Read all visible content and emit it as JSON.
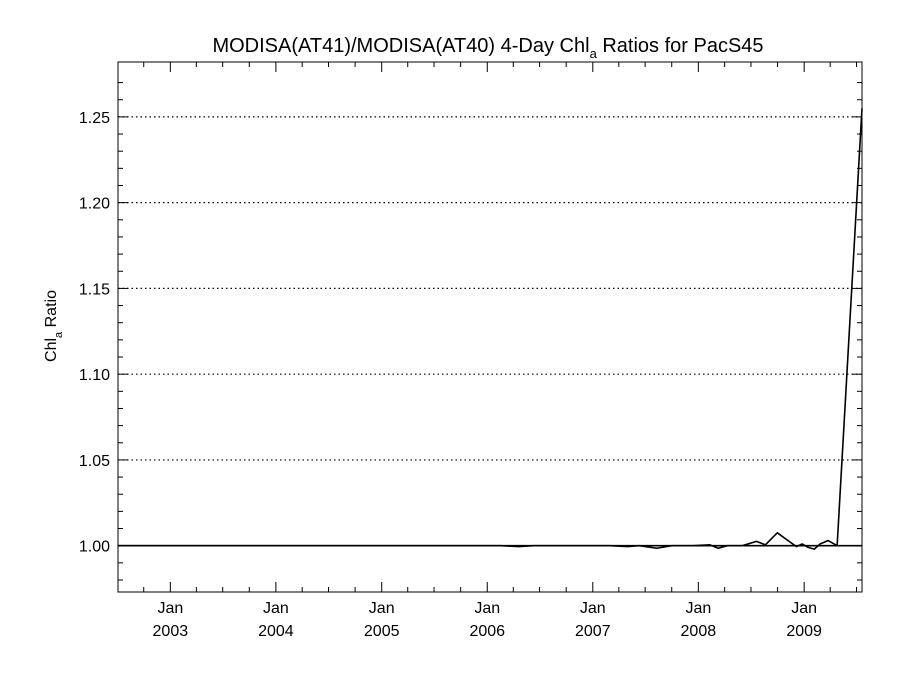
{
  "chart_data": {
    "type": "line",
    "title_main": "MODISA(AT41)/MODISA(AT40) 4-Day Chl",
    "title_sub": "a",
    "title_rest": " Ratios for PacS45",
    "ylabel_main": "Chl",
    "ylabel_sub": "a",
    "ylabel_rest": " Ratio",
    "xlim": [
      "2002-07-04",
      "2009-07-20"
    ],
    "ylim": [
      0.973,
      1.282
    ],
    "y_ticks": [
      1.0,
      1.05,
      1.1,
      1.15,
      1.2,
      1.25
    ],
    "y_tick_labels": [
      "1.00",
      "1.05",
      "1.10",
      "1.15",
      "1.20",
      "1.25"
    ],
    "y_gridlines": "dotted",
    "x_ticks": [
      {
        "date": "2003-01-01",
        "month": "Jan",
        "year": "2003"
      },
      {
        "date": "2004-01-01",
        "month": "Jan",
        "year": "2004"
      },
      {
        "date": "2005-01-01",
        "month": "Jan",
        "year": "2005"
      },
      {
        "date": "2006-01-01",
        "month": "Jan",
        "year": "2006"
      },
      {
        "date": "2007-01-01",
        "month": "Jan",
        "year": "2007"
      },
      {
        "date": "2008-01-01",
        "month": "Jan",
        "year": "2008"
      },
      {
        "date": "2009-01-01",
        "month": "Jan",
        "year": "2009"
      }
    ],
    "series": [
      {
        "points": [
          [
            "2002-07-04",
            1.0
          ],
          [
            "2006-02-15",
            1.0
          ],
          [
            "2006-04-20",
            0.9995
          ],
          [
            "2006-06-10",
            1.0
          ],
          [
            "2007-03-01",
            1.0
          ],
          [
            "2007-05-01",
            0.9995
          ],
          [
            "2007-06-10",
            1.0
          ],
          [
            "2007-08-10",
            0.9985
          ],
          [
            "2007-10-01",
            1.0
          ],
          [
            "2007-12-15",
            1.0
          ],
          [
            "2008-02-10",
            1.0005
          ],
          [
            "2008-03-10",
            0.9985
          ],
          [
            "2008-04-10",
            1.0
          ],
          [
            "2008-06-01",
            1.0
          ],
          [
            "2008-07-20",
            1.0025
          ],
          [
            "2008-08-20",
            1.0005
          ],
          [
            "2008-09-30",
            1.0075
          ],
          [
            "2008-11-10",
            1.0025
          ],
          [
            "2008-12-05",
            0.9995
          ],
          [
            "2008-12-25",
            1.001
          ],
          [
            "2009-01-15",
            0.999
          ],
          [
            "2009-02-05",
            0.998
          ],
          [
            "2009-02-25",
            1.001
          ],
          [
            "2009-03-25",
            1.003
          ],
          [
            "2009-04-25",
            1.0
          ],
          [
            "2009-07-20",
            1.255
          ]
        ]
      }
    ]
  }
}
